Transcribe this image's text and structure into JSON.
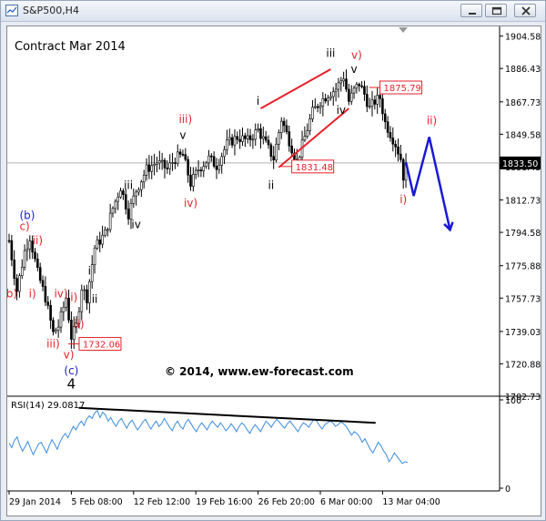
{
  "window": {
    "title": "S&P500,H4",
    "minimize_icon": "minimize-icon",
    "restore_icon": "restore-icon",
    "close_icon": "close-icon"
  },
  "colors": {
    "candles": "#000000",
    "wave_red": "#e8202a",
    "wave_blue": "#1a1ad6",
    "wave_black": "#000000",
    "rsi_line": "#3a8be0",
    "price_box": "#e8202a"
  },
  "chart_data": [
    {
      "type": "candlestick",
      "title": "Contract Mar 2014",
      "watermark": "© 2014, www.ew-forecast.com",
      "ylim": [
        1702.73,
        1910
      ],
      "y_ticks": [
        1904.58,
        1886.43,
        1867.73,
        1849.58,
        1831.43,
        1812.73,
        1794.58,
        1775.88,
        1757.73,
        1739.03,
        1720.88,
        1702.73
      ],
      "x_ticks": [
        "29 Jan 2014",
        "5 Feb 08:00",
        "12 Feb 12:00",
        "19 Feb 16:00",
        "26 Feb 20:00",
        "6 Mar 00:00",
        "13 Mar 04:00"
      ],
      "current_price": "1833.50",
      "grid": false,
      "close_path": [
        {
          "bar": 0,
          "close": 1790
        },
        {
          "bar": 3,
          "close": 1762
        },
        {
          "bar": 6,
          "close": 1784
        },
        {
          "bar": 8,
          "close": 1792
        },
        {
          "bar": 11,
          "close": 1772
        },
        {
          "bar": 14,
          "close": 1758
        },
        {
          "bar": 17,
          "close": 1738
        },
        {
          "bar": 19,
          "close": 1742
        },
        {
          "bar": 22,
          "close": 1758
        },
        {
          "bar": 24,
          "close": 1736
        },
        {
          "bar": 26,
          "close": 1742
        },
        {
          "bar": 28,
          "close": 1764
        },
        {
          "bar": 30,
          "close": 1758
        },
        {
          "bar": 33,
          "close": 1786
        },
        {
          "bar": 37,
          "close": 1794
        },
        {
          "bar": 40,
          "close": 1808
        },
        {
          "bar": 43,
          "close": 1820
        },
        {
          "bar": 46,
          "close": 1805
        },
        {
          "bar": 49,
          "close": 1818
        },
        {
          "bar": 53,
          "close": 1830
        },
        {
          "bar": 57,
          "close": 1834
        },
        {
          "bar": 61,
          "close": 1830
        },
        {
          "bar": 64,
          "close": 1836
        },
        {
          "bar": 67,
          "close": 1838
        },
        {
          "bar": 70,
          "close": 1822
        },
        {
          "bar": 73,
          "close": 1830
        },
        {
          "bar": 77,
          "close": 1836
        },
        {
          "bar": 80,
          "close": 1832
        },
        {
          "bar": 84,
          "close": 1844
        },
        {
          "bar": 88,
          "close": 1848
        },
        {
          "bar": 92,
          "close": 1846
        },
        {
          "bar": 96,
          "close": 1852
        },
        {
          "bar": 99,
          "close": 1844
        },
        {
          "bar": 102,
          "close": 1836
        },
        {
          "bar": 105,
          "close": 1858
        },
        {
          "bar": 108,
          "close": 1846
        },
        {
          "bar": 111,
          "close": 1834
        },
        {
          "bar": 114,
          "close": 1848
        },
        {
          "bar": 117,
          "close": 1862
        },
        {
          "bar": 120,
          "close": 1868
        },
        {
          "bar": 123,
          "close": 1872
        },
        {
          "bar": 126,
          "close": 1875
        },
        {
          "bar": 129,
          "close": 1882
        },
        {
          "bar": 131,
          "close": 1868
        },
        {
          "bar": 133,
          "close": 1874
        },
        {
          "bar": 135,
          "close": 1878
        },
        {
          "bar": 137,
          "close": 1872
        },
        {
          "bar": 139,
          "close": 1864
        },
        {
          "bar": 141,
          "close": 1868
        },
        {
          "bar": 143,
          "close": 1870
        },
        {
          "bar": 145,
          "close": 1856
        },
        {
          "bar": 147,
          "close": 1850
        },
        {
          "bar": 149,
          "close": 1844
        },
        {
          "bar": 151,
          "close": 1836
        },
        {
          "bar": 152,
          "close": 1826
        },
        {
          "bar": 153,
          "close": 1833.5
        }
      ],
      "price_boxes": [
        {
          "label": "1875.79",
          "price": 1875.79,
          "bar": 143
        },
        {
          "label": "1831.48",
          "price": 1831.48,
          "bar": 109
        },
        {
          "label": "1732.06",
          "price": 1732.06,
          "bar": 27
        }
      ],
      "channel_lines": [
        {
          "from": {
            "bar": 97,
            "price": 1864
          },
          "to": {
            "bar": 124,
            "price": 1886
          }
        },
        {
          "from": {
            "bar": 104,
            "price": 1831
          },
          "to": {
            "bar": 131,
            "price": 1864
          }
        }
      ],
      "projection": [
        {
          "bar": 153,
          "price": 1834
        },
        {
          "bar": 156,
          "price": 1815
        },
        {
          "bar": 162,
          "price": 1848
        },
        {
          "bar": 170,
          "price": 1796
        }
      ],
      "wave_labels": [
        {
          "text": "(b)",
          "bar": 7,
          "price": 1802,
          "color": "blue"
        },
        {
          "text": "c)",
          "bar": 6,
          "price": 1796,
          "color": "red"
        },
        {
          "text": "ii)",
          "bar": 11,
          "price": 1788,
          "color": "red"
        },
        {
          "text": "b)",
          "bar": 1,
          "price": 1758,
          "color": "red"
        },
        {
          "text": "i)",
          "bar": 9,
          "price": 1758,
          "color": "red"
        },
        {
          "text": "iv)",
          "bar": 20,
          "price": 1758,
          "color": "red"
        },
        {
          "text": "i)",
          "bar": 25,
          "price": 1756,
          "color": "red"
        },
        {
          "text": "ii)",
          "bar": 27,
          "price": 1741,
          "color": "red"
        },
        {
          "text": "iii)",
          "bar": 17,
          "price": 1730,
          "color": "red"
        },
        {
          "text": "v)",
          "bar": 23,
          "price": 1724,
          "color": "red"
        },
        {
          "text": "(c)",
          "bar": 24,
          "price": 1715,
          "color": "blue"
        },
        {
          "text": "4",
          "bar": 24,
          "price": 1707,
          "color": "black"
        },
        {
          "text": "i",
          "bar": 31,
          "price": 1771,
          "color": "black"
        },
        {
          "text": "ii",
          "bar": 33,
          "price": 1755,
          "color": "black"
        },
        {
          "text": "iii",
          "bar": 46,
          "price": 1819,
          "color": "black"
        },
        {
          "text": "iv",
          "bar": 49,
          "price": 1797,
          "color": "black"
        },
        {
          "text": "iii)",
          "bar": 68,
          "price": 1856,
          "color": "red"
        },
        {
          "text": "v",
          "bar": 67,
          "price": 1847,
          "color": "black"
        },
        {
          "text": "iv)",
          "bar": 70,
          "price": 1809,
          "color": "red"
        },
        {
          "text": "i",
          "bar": 96,
          "price": 1866,
          "color": "black"
        },
        {
          "text": "ii",
          "bar": 101,
          "price": 1819,
          "color": "black"
        },
        {
          "text": "iii",
          "bar": 124,
          "price": 1893,
          "color": "black"
        },
        {
          "text": "v)",
          "bar": 134,
          "price": 1892,
          "color": "red"
        },
        {
          "text": "v",
          "bar": 133,
          "price": 1884,
          "color": "black"
        },
        {
          "text": "iv",
          "bar": 128,
          "price": 1861,
          "color": "black"
        },
        {
          "text": "ii)",
          "bar": 163,
          "price": 1855,
          "color": "red"
        },
        {
          "text": "i)",
          "bar": 152,
          "price": 1811,
          "color": "red"
        }
      ]
    },
    {
      "type": "line",
      "title": "RSI(14) 29.0817",
      "ylim": [
        0,
        100
      ],
      "y_ticks": [
        0,
        100
      ],
      "values": [
        51,
        46,
        54,
        58,
        49,
        42,
        47,
        53,
        45,
        38,
        44,
        50,
        52,
        46,
        40,
        48,
        55,
        50,
        44,
        52,
        58,
        62,
        57,
        64,
        70,
        66,
        72,
        76,
        71,
        78,
        82,
        79,
        85,
        88,
        80,
        86,
        83,
        76,
        80,
        74,
        70,
        76,
        79,
        73,
        68,
        74,
        77,
        71,
        66,
        70,
        75,
        78,
        72,
        67,
        72,
        76,
        70,
        73,
        79,
        74,
        69,
        65,
        72,
        76,
        70,
        67,
        74,
        78,
        73,
        68,
        64,
        70,
        74,
        70,
        66,
        72,
        76,
        72,
        69,
        74,
        70,
        65,
        68,
        73,
        69,
        64,
        70,
        74,
        71,
        66,
        62,
        68,
        72,
        68,
        64,
        70,
        76,
        73,
        69,
        74,
        78,
        75,
        71,
        68,
        73,
        76,
        72,
        68,
        64,
        70,
        74,
        72,
        69,
        74,
        78,
        76,
        71,
        67,
        72,
        74,
        76,
        74,
        70,
        72,
        75,
        73,
        70,
        65,
        60,
        64,
        62,
        58,
        52,
        56,
        50,
        44,
        40,
        46,
        52,
        48,
        42,
        38,
        30,
        34,
        40,
        36,
        32,
        28,
        30,
        29.08
      ],
      "trendline": {
        "from": {
          "index": 26,
          "value": 91
        },
        "to": {
          "index": 137,
          "value": 74
        }
      }
    }
  ]
}
